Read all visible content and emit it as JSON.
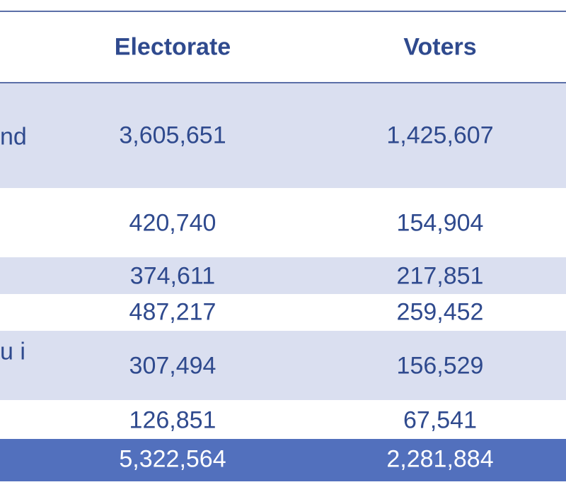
{
  "table": {
    "headers": {
      "electorate": "Electorate",
      "voters": "Voters"
    },
    "rows": [
      {
        "label": "nd",
        "electorate": "3,605,651",
        "voters": "1,425,607"
      },
      {
        "label": "",
        "electorate": "420,740",
        "voters": "154,904"
      },
      {
        "label": "",
        "electorate": "374,611",
        "voters": "217,851"
      },
      {
        "label": "",
        "electorate": "487,217",
        "voters": "259,452"
      },
      {
        "label": "u i",
        "electorate": "307,494",
        "voters": "156,529"
      },
      {
        "label": "",
        "electorate": "126,851",
        "voters": "67,541"
      }
    ],
    "total": {
      "electorate": "5,322,564",
      "voters": "2,281,884"
    }
  },
  "colors": {
    "text": "#2f4a8e",
    "row_shade": "#dadff0",
    "total_row": "#5270bd",
    "rule": "#5b6fa8"
  }
}
